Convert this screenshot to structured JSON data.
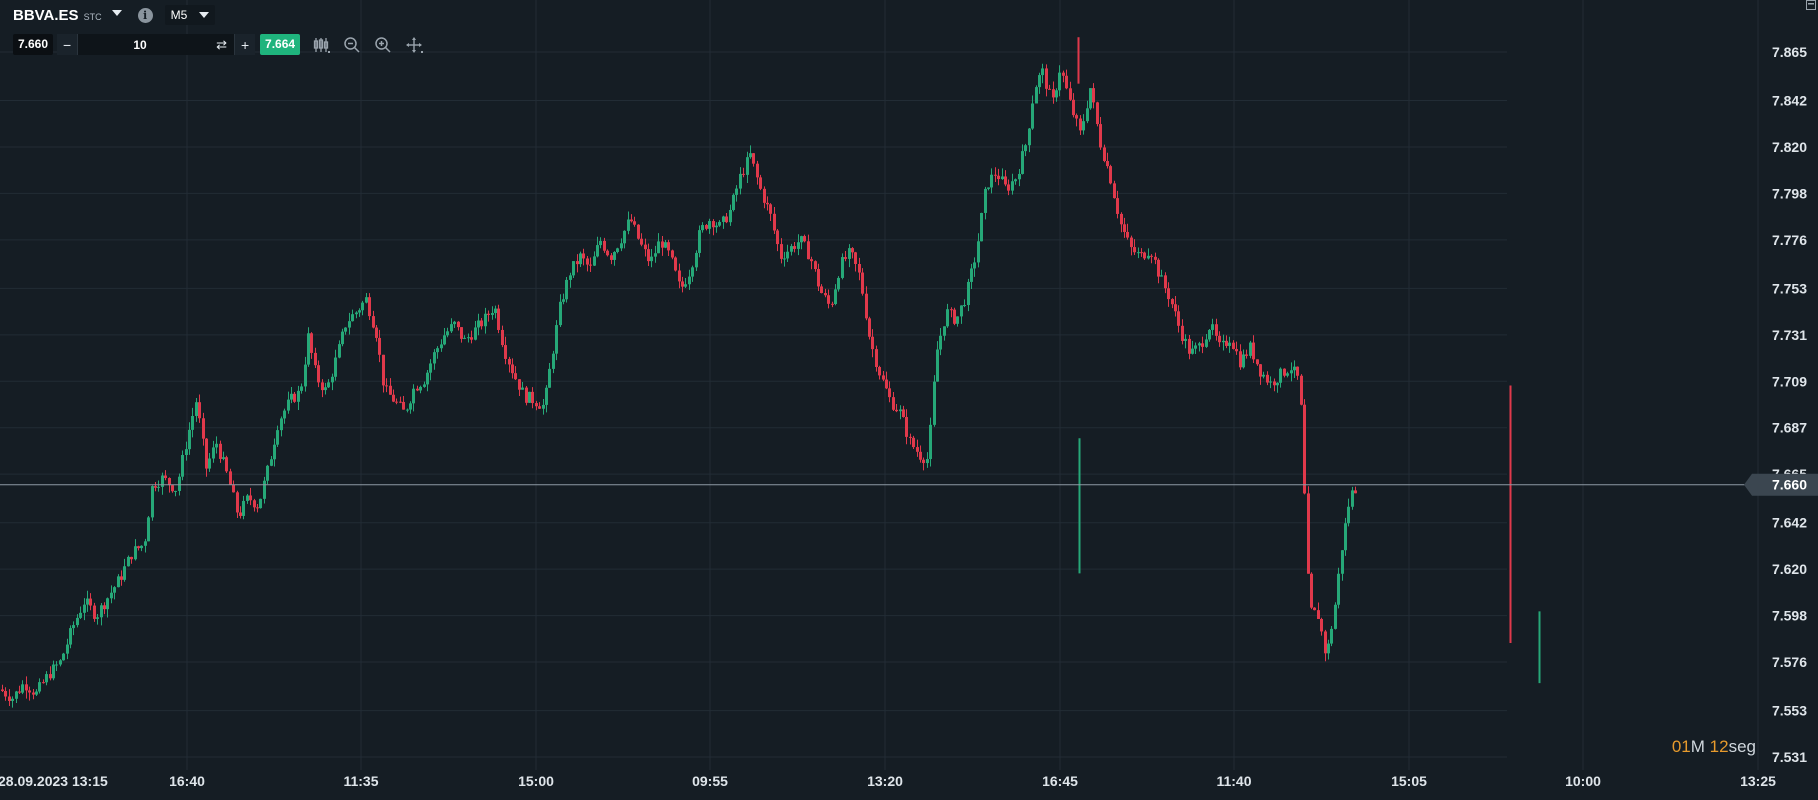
{
  "header": {
    "symbol": "BBVA.ES",
    "symbol_type": "STC",
    "timeframe": "M5"
  },
  "order": {
    "sell_price": "7.660",
    "quantity": "10",
    "minus_label": "−",
    "plus_label": "+",
    "buy_price": "7.664"
  },
  "timer": {
    "minutes": "01",
    "minutes_unit": "M",
    "seconds": "12",
    "seconds_unit": "seg"
  },
  "colors": {
    "background": "#151d24",
    "bullish": "#26a878",
    "bearish": "#e0394b",
    "grid": "#222c35",
    "price_line": "#8d99a3",
    "buy_accent": "#1fb47d",
    "timer_accent": "#e69a2d"
  },
  "icons": [
    "chevron-down-icon",
    "info-icon",
    "repeat-icon",
    "candles-icon",
    "zoom-out-icon",
    "zoom-in-icon",
    "move-icon",
    "window-icon"
  ],
  "chart_data": {
    "type": "candlestick",
    "current_price": 7.66,
    "current_price_label": "7.660",
    "ylim": [
      7.531,
      7.876
    ],
    "y_ticks": [
      7.865,
      7.842,
      7.82,
      7.798,
      7.776,
      7.753,
      7.731,
      7.709,
      7.687,
      7.665,
      7.642,
      7.62,
      7.598,
      7.576,
      7.553,
      7.531
    ],
    "y_tick_labels": [
      "7.865",
      "7.842",
      "7.820",
      "7.798",
      "7.776",
      "7.753",
      "7.731",
      "7.709",
      "7.687",
      "7.665",
      "7.642",
      "7.620",
      "7.598",
      "7.576",
      "7.553",
      "7.531"
    ],
    "x_tick_labels": [
      "28.09.2023 13:15",
      "16:40",
      "11:35",
      "15:00",
      "09:55",
      "13:20",
      "16:45",
      "11:40",
      "15:05",
      "10:00",
      "13:25"
    ],
    "close_path": [
      [
        0,
        7.563
      ],
      [
        12,
        7.559
      ],
      [
        24,
        7.566
      ],
      [
        36,
        7.561
      ],
      [
        48,
        7.57
      ],
      [
        60,
        7.576
      ],
      [
        72,
        7.592
      ],
      [
        84,
        7.605
      ],
      [
        96,
        7.598
      ],
      [
        108,
        7.607
      ],
      [
        120,
        7.616
      ],
      [
        132,
        7.628
      ],
      [
        144,
        7.632
      ],
      [
        152,
        7.66
      ],
      [
        162,
        7.663
      ],
      [
        176,
        7.658
      ],
      [
        186,
        7.68
      ],
      [
        196,
        7.7
      ],
      [
        206,
        7.668
      ],
      [
        216,
        7.68
      ],
      [
        228,
        7.663
      ],
      [
        238,
        7.645
      ],
      [
        248,
        7.654
      ],
      [
        258,
        7.65
      ],
      [
        268,
        7.668
      ],
      [
        278,
        7.69
      ],
      [
        290,
        7.7
      ],
      [
        300,
        7.704
      ],
      [
        308,
        7.73
      ],
      [
        316,
        7.711
      ],
      [
        326,
        7.704
      ],
      [
        336,
        7.72
      ],
      [
        346,
        7.737
      ],
      [
        356,
        7.742
      ],
      [
        366,
        7.748
      ],
      [
        376,
        7.732
      ],
      [
        384,
        7.705
      ],
      [
        394,
        7.7
      ],
      [
        404,
        7.694
      ],
      [
        414,
        7.706
      ],
      [
        424,
        7.71
      ],
      [
        434,
        7.722
      ],
      [
        444,
        7.731
      ],
      [
        454,
        7.736
      ],
      [
        464,
        7.728
      ],
      [
        474,
        7.733
      ],
      [
        484,
        7.738
      ],
      [
        494,
        7.745
      ],
      [
        504,
        7.724
      ],
      [
        514,
        7.712
      ],
      [
        524,
        7.702
      ],
      [
        534,
        7.7
      ],
      [
        544,
        7.697
      ],
      [
        552,
        7.722
      ],
      [
        560,
        7.745
      ],
      [
        570,
        7.761
      ],
      [
        580,
        7.768
      ],
      [
        590,
        7.762
      ],
      [
        600,
        7.776
      ],
      [
        610,
        7.768
      ],
      [
        620,
        7.776
      ],
      [
        630,
        7.786
      ],
      [
        640,
        7.774
      ],
      [
        650,
        7.765
      ],
      [
        660,
        7.776
      ],
      [
        670,
        7.768
      ],
      [
        680,
        7.752
      ],
      [
        690,
        7.762
      ],
      [
        700,
        7.78
      ],
      [
        710,
        7.786
      ],
      [
        720,
        7.782
      ],
      [
        730,
        7.79
      ],
      [
        740,
        7.806
      ],
      [
        750,
        7.816
      ],
      [
        760,
        7.8
      ],
      [
        770,
        7.788
      ],
      [
        780,
        7.768
      ],
      [
        790,
        7.772
      ],
      [
        800,
        7.776
      ],
      [
        810,
        7.768
      ],
      [
        820,
        7.752
      ],
      [
        830,
        7.744
      ],
      [
        840,
        7.764
      ],
      [
        850,
        7.77
      ],
      [
        860,
        7.758
      ],
      [
        870,
        7.728
      ],
      [
        880,
        7.712
      ],
      [
        890,
        7.7
      ],
      [
        900,
        7.694
      ],
      [
        910,
        7.68
      ],
      [
        920,
        7.674
      ],
      [
        928,
        7.672
      ],
      [
        936,
        7.722
      ],
      [
        946,
        7.742
      ],
      [
        956,
        7.738
      ],
      [
        966,
        7.75
      ],
      [
        976,
        7.77
      ],
      [
        986,
        7.802
      ],
      [
        996,
        7.808
      ],
      [
        1006,
        7.8
      ],
      [
        1016,
        7.806
      ],
      [
        1026,
        7.822
      ],
      [
        1034,
        7.848
      ],
      [
        1042,
        7.856
      ],
      [
        1052,
        7.84
      ],
      [
        1060,
        7.858
      ],
      [
        1070,
        7.84
      ],
      [
        1080,
        7.826
      ],
      [
        1090,
        7.848
      ],
      [
        1100,
        7.822
      ],
      [
        1110,
        7.806
      ],
      [
        1120,
        7.784
      ],
      [
        1130,
        7.772
      ],
      [
        1140,
        7.768
      ],
      [
        1150,
        7.772
      ],
      [
        1160,
        7.758
      ],
      [
        1170,
        7.748
      ],
      [
        1180,
        7.733
      ],
      [
        1190,
        7.722
      ],
      [
        1200,
        7.726
      ],
      [
        1210,
        7.736
      ],
      [
        1220,
        7.724
      ],
      [
        1230,
        7.73
      ],
      [
        1240,
        7.718
      ],
      [
        1250,
        7.725
      ],
      [
        1260,
        7.714
      ],
      [
        1270,
        7.708
      ],
      [
        1280,
        7.712
      ],
      [
        1290,
        7.716
      ],
      [
        1298,
        7.71
      ],
      [
        1302,
        7.69
      ],
      [
        1306,
        7.625
      ],
      [
        1310,
        7.6
      ],
      [
        1318,
        7.598
      ],
      [
        1326,
        7.578
      ],
      [
        1334,
        7.6
      ],
      [
        1342,
        7.632
      ],
      [
        1350,
        7.655
      ],
      [
        1358,
        7.66
      ]
    ]
  }
}
